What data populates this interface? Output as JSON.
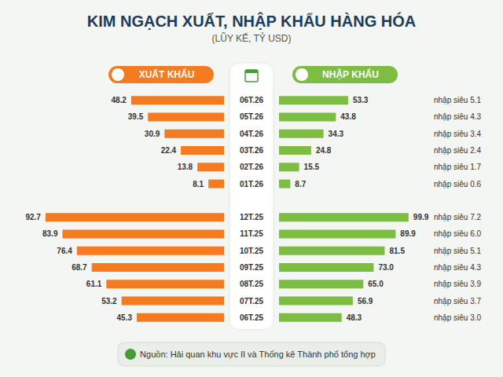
{
  "chart_data": {
    "type": "bar",
    "orientation": "horizontal",
    "title": "KIM NGẠCH XUẤT, NHẬP KHẨU HÀNG HÓA",
    "subtitle": "(LŨY KẾ, TỶ USD)",
    "source": "Nguồn: Hải quan khu vực II và Thống kê Thành phố tổng hợp",
    "categories": [
      "06T.26",
      "05T.26",
      "04T.26",
      "03T.26",
      "02T.26",
      "01T.26",
      null,
      "12T.25",
      "11T.25",
      "10T.25",
      "09T.25",
      "08T.25",
      "07T.25",
      "06T.25"
    ],
    "series": [
      {
        "name": "XUẤT KHẨU",
        "color": "#f47b20",
        "values": [
          48.2,
          39.5,
          30.9,
          22.4,
          13.8,
          8.1,
          null,
          92.7,
          83.9,
          76.4,
          68.7,
          61.1,
          53.2,
          45.3
        ]
      },
      {
        "name": "NHẬP KHẨU",
        "color": "#7cbd42",
        "values": [
          53.3,
          43.8,
          34.3,
          24.8,
          15.5,
          8.7,
          null,
          99.9,
          89.9,
          81.5,
          73.0,
          65.0,
          56.9,
          48.3
        ],
        "value_labels": [
          "53.3",
          "43.8",
          "34.3",
          "24.8",
          "15.5",
          "8.7",
          null,
          "99.9",
          "89.9",
          "81.5",
          "73.0",
          "65.0",
          "56.9",
          "48.3"
        ],
        "annotations": [
          "nhập siêu 5.1",
          "nhập siêu 4.3",
          "nhập siêu 3.4",
          "nhập siêu 2.4",
          "nhập siêu 1.7",
          "nhập siêu 0.6",
          null,
          "nhập siêu 7.2",
          "nhập siêu 6.0",
          "nhập siêu 5.1",
          "nhập siêu 4.3",
          "nhập siêu 3.9",
          "nhập siêu 3.7",
          "nhập siêu 3.0"
        ]
      }
    ],
    "xlim": [
      0,
      100
    ],
    "data_labels": true,
    "tick_labels": "y",
    "grid": false
  }
}
